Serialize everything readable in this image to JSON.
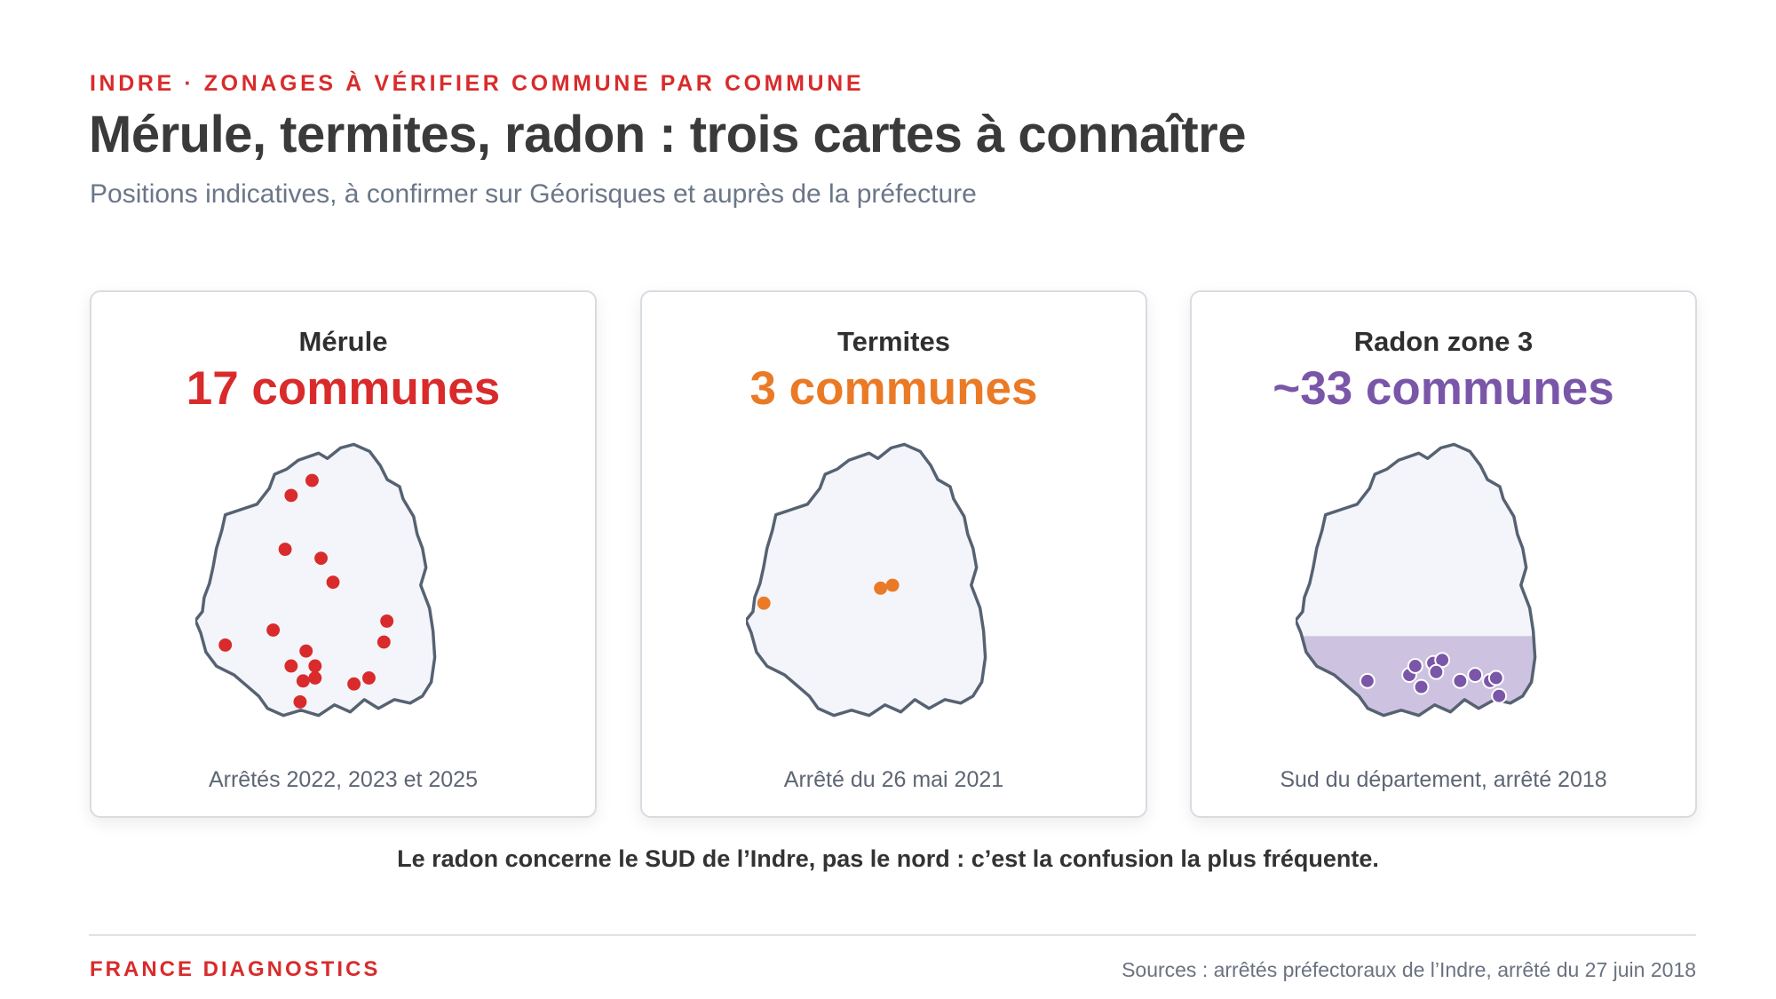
{
  "header": {
    "eyebrow": "INDRE · ZONAGES À VÉRIFIER COMMUNE PAR COMMUNE",
    "title": "Mérule, termites, radon : trois cartes à connaître",
    "subtitle": "Positions indicatives, à confirmer sur Géorisques et auprès de la préfecture"
  },
  "cards": [
    {
      "title": "Mérule",
      "count": "17 communes",
      "note": "Arrêtés 2022, 2023 et 2025",
      "color": "#d92b2b",
      "zone": null,
      "points": [
        [
          0.39,
          0.15
        ],
        [
          0.32,
          0.2
        ],
        [
          0.3,
          0.38
        ],
        [
          0.42,
          0.41
        ],
        [
          0.46,
          0.49
        ],
        [
          0.64,
          0.62
        ],
        [
          0.63,
          0.69
        ],
        [
          0.26,
          0.65
        ],
        [
          0.1,
          0.7
        ],
        [
          0.37,
          0.72
        ],
        [
          0.32,
          0.77
        ],
        [
          0.4,
          0.77
        ],
        [
          0.36,
          0.82
        ],
        [
          0.4,
          0.81
        ],
        [
          0.53,
          0.83
        ],
        [
          0.58,
          0.81
        ],
        [
          0.35,
          0.89
        ]
      ]
    },
    {
      "title": "Termites",
      "count": "3 communes",
      "note": "Arrêté du 26 mai 2021",
      "color": "#ea7a26",
      "zone": null,
      "points": [
        [
          0.06,
          0.56
        ],
        [
          0.45,
          0.51
        ],
        [
          0.49,
          0.5
        ]
      ]
    },
    {
      "title": "Radon zone 3",
      "count": "~33 communes",
      "note": "Sud du département, arrêté 2018",
      "color": "#7a56a8",
      "zone": {
        "from": 0.67,
        "color": "#cdc3e0"
      },
      "points": [
        [
          0.24,
          0.82
        ],
        [
          0.38,
          0.8
        ],
        [
          0.4,
          0.77
        ],
        [
          0.46,
          0.76
        ],
        [
          0.49,
          0.75
        ],
        [
          0.42,
          0.84
        ],
        [
          0.47,
          0.79
        ],
        [
          0.55,
          0.82
        ],
        [
          0.6,
          0.8
        ],
        [
          0.65,
          0.82
        ],
        [
          0.67,
          0.81
        ],
        [
          0.68,
          0.87
        ]
      ]
    }
  ],
  "callout": "Le radon concerne le SUD de l’Indre, pas le nord : c’est la confusion la plus fréquente.",
  "footer": {
    "brand": "FRANCE DIAGNOSTICS",
    "sources": "Sources : arrêtés préfectoraux de l’Indre, arrêté du 27 juin 2018"
  }
}
